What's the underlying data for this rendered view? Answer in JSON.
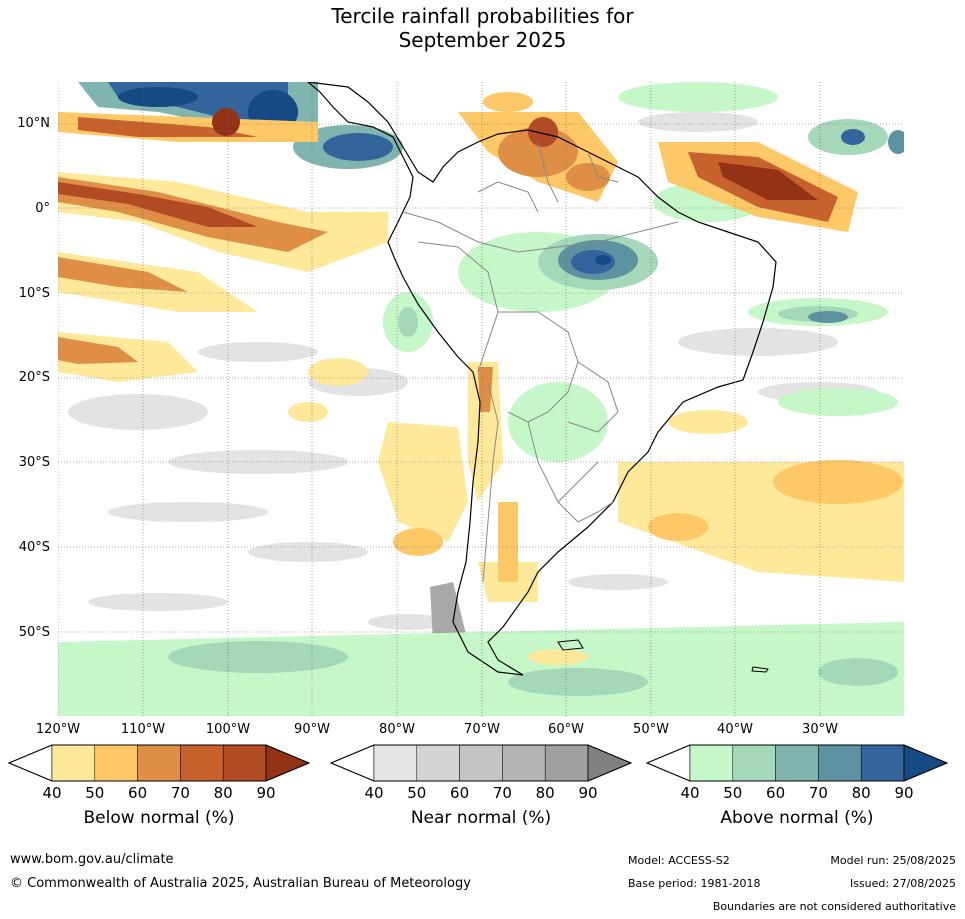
{
  "title": {
    "line1": "Tercile rainfall probabilities for",
    "line2": "September 2025"
  },
  "map": {
    "lat_labels": [
      "10°N",
      "0°",
      "10°S",
      "20°S",
      "30°S",
      "40°S",
      "50°S"
    ],
    "lon_labels": [
      "120°W",
      "110°W",
      "100°W",
      "90°W",
      "80°W",
      "70°W",
      "60°W",
      "50°W",
      "40°W",
      "30°W"
    ],
    "grid_lines": "dotted",
    "features": [
      "coastlines",
      "country-boundaries",
      "probability-contours"
    ]
  },
  "colorbars": [
    {
      "title": "Below normal (%)",
      "ticks": [
        "40",
        "50",
        "60",
        "70",
        "80",
        "90"
      ],
      "colors": [
        "#ffffff",
        "#fee99a",
        "#fdc865",
        "#de8f45",
        "#c8622d",
        "#b24a23",
        "#943218"
      ]
    },
    {
      "title": "Near normal (%)",
      "ticks": [
        "40",
        "50",
        "60",
        "70",
        "80",
        "90"
      ],
      "colors": [
        "#ffffff",
        "#e5e5e5",
        "#d4d4d4",
        "#c4c4c4",
        "#b4b4b4",
        "#a0a0a0",
        "#808080"
      ]
    },
    {
      "title": "Above normal (%)",
      "ticks": [
        "40",
        "50",
        "60",
        "70",
        "80",
        "90"
      ],
      "colors": [
        "#ffffff",
        "#c6f7c8",
        "#a4d8b8",
        "#7fb5ae",
        "#5d93a0",
        "#33649b",
        "#154a85"
      ]
    }
  ],
  "footer": {
    "website": "www.bom.gov.au/climate",
    "copyright": "© Commonwealth of Australia 2025, Australian Bureau of Meteorology",
    "model": "Model: ACCESS-S2",
    "base_period": "Base period: 1981-2018",
    "model_run": "Model run: 25/08/2025",
    "issued": "Issued: 27/08/2025",
    "disclaimer": "Boundaries are not considered authoritative"
  }
}
